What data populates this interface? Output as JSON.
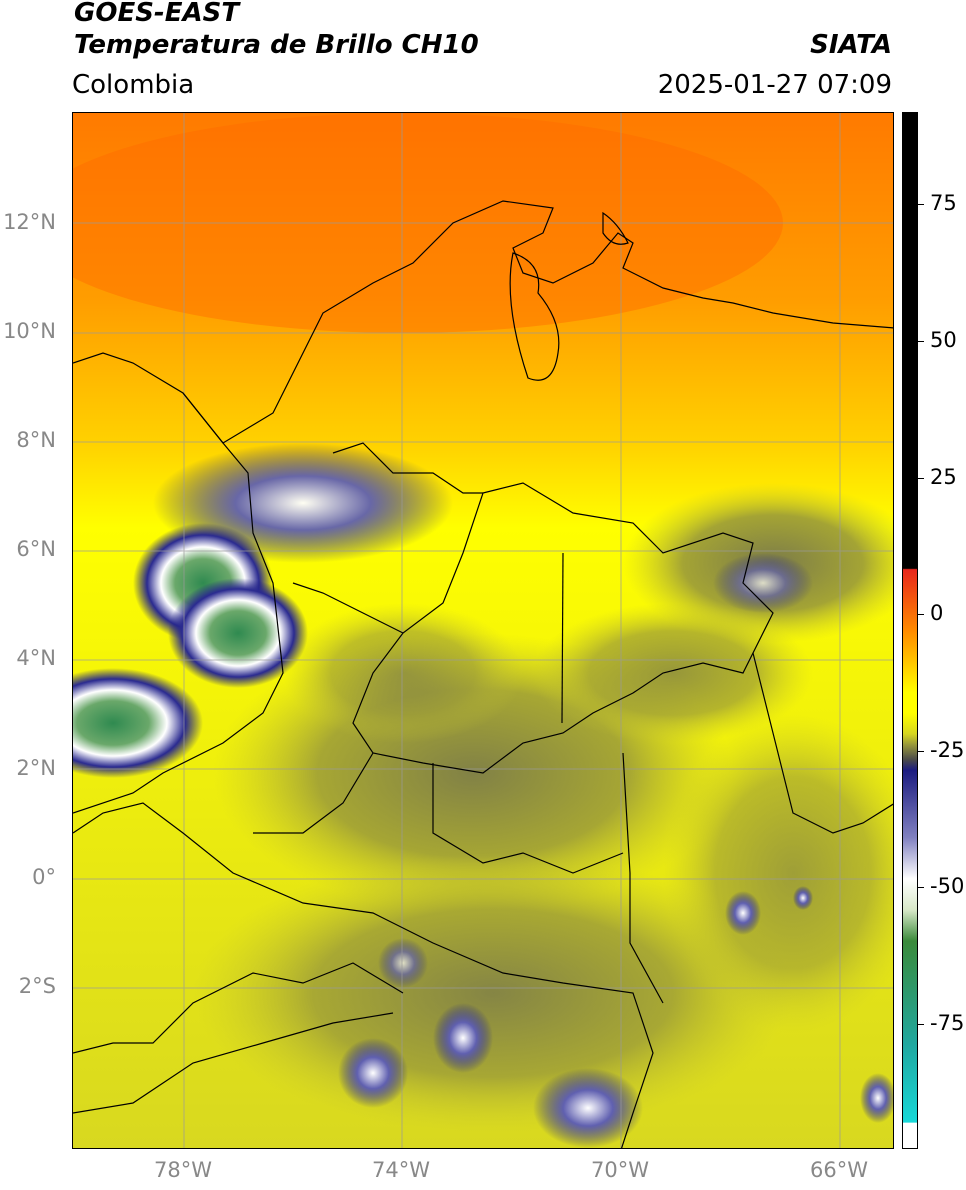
{
  "header": {
    "satellite": "GOES-EAST",
    "product": "Temperatura de Brillo CH10",
    "agency": "SIATA",
    "region": "Colombia",
    "timestamp": "2025-01-27 07:09"
  },
  "axes": {
    "lat_ticks": [
      "12°N",
      "10°N",
      "8°N",
      "6°N",
      "4°N",
      "2°N",
      "0°",
      "2°S"
    ],
    "lon_ticks": [
      "78°W",
      "74°W",
      "70°W",
      "66°W"
    ]
  },
  "colorbar": {
    "labels": [
      "75",
      "50",
      "25",
      "0",
      "-25",
      "-50",
      "-75"
    ],
    "colors": {
      "black": "#000000",
      "red": "#e8261c",
      "orange": "#ff8a00",
      "yellow": "#ffff00",
      "olive": "#9a9a3a",
      "navy": "#1c1c80",
      "white": "#ffffff",
      "green": "#3a8a3a",
      "cyan": "#18d8d8"
    }
  }
}
